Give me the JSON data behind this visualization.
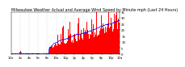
{
  "title": "Milwaukee Weather Actual and Average Wind Speed by Minute mph (Last 24 Hours)",
  "n_points": 1440,
  "y_max": 35,
  "y_min": 0,
  "bar_color": "#ff0000",
  "line_color": "#0000ff",
  "background_color": "#ffffff",
  "grid_color": "#b0b0b0",
  "title_fontsize": 3.5,
  "tick_fontsize": 2.8
}
